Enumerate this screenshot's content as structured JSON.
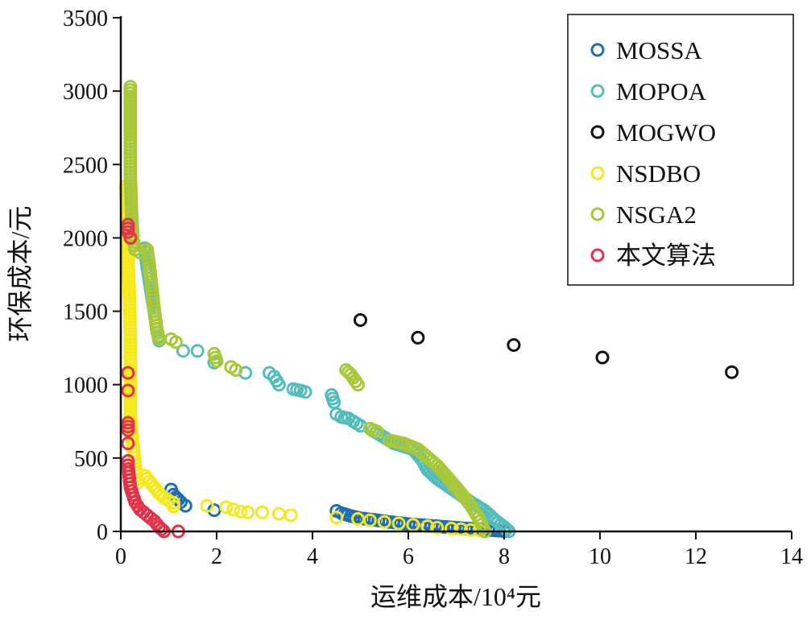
{
  "chart_data": {
    "type": "scatter",
    "title": "",
    "xlabel": "运维成本/10⁴元",
    "ylabel": "环保成本/元",
    "xlim": [
      0,
      14
    ],
    "ylim": [
      0,
      3500
    ],
    "xticks": [
      0,
      2,
      4,
      6,
      8,
      10,
      12,
      14
    ],
    "yticks": [
      0,
      500,
      1000,
      1500,
      2000,
      2500,
      3000,
      3500
    ],
    "grid": false,
    "legend_position": "top-right",
    "series": [
      {
        "name": "MOSSA",
        "color": "#1f6db3",
        "runs": [
          [
            [
              1.05,
              285
            ],
            [
              1.1,
              250
            ],
            [
              1.25,
              200
            ],
            [
              1.35,
              175
            ]
          ],
          [
            [
              1.95,
              145
            ]
          ],
          [
            [
              4.5,
              140
            ],
            [
              4.6,
              125
            ],
            [
              4.8,
              105
            ],
            [
              5.0,
              90
            ],
            [
              5.3,
              78
            ],
            [
              5.6,
              65
            ],
            [
              6.0,
              50
            ],
            [
              6.4,
              40
            ],
            [
              6.8,
              30
            ],
            [
              7.2,
              20
            ],
            [
              7.6,
              12
            ],
            [
              7.9,
              5
            ],
            [
              8.0,
              0
            ]
          ]
        ]
      },
      {
        "name": "MOPOA",
        "color": "#55bcbc",
        "runs": [
          [
            [
              0.5,
              1930
            ],
            [
              0.55,
              1800
            ],
            [
              0.6,
              1700
            ],
            [
              0.7,
              1500
            ],
            [
              0.75,
              1380
            ],
            [
              0.8,
              1300
            ]
          ],
          [
            [
              1.3,
              1230
            ]
          ],
          [
            [
              1.6,
              1230
            ]
          ],
          [
            [
              1.95,
              1150
            ]
          ],
          [
            [
              2.6,
              1080
            ]
          ],
          [
            [
              3.1,
              1080
            ],
            [
              3.2,
              1055
            ],
            [
              3.3,
              1000
            ]
          ],
          [
            [
              3.6,
              970
            ],
            [
              3.75,
              960
            ],
            [
              3.85,
              950
            ]
          ],
          [
            [
              4.4,
              930
            ],
            [
              4.45,
              880
            ]
          ],
          [
            [
              4.5,
              800
            ],
            [
              4.6,
              780
            ],
            [
              4.75,
              770
            ],
            [
              4.85,
              750
            ],
            [
              5.0,
              720
            ]
          ],
          [
            [
              5.2,
              700
            ],
            [
              5.7,
              600
            ],
            [
              6.1,
              560
            ],
            [
              6.3,
              480
            ],
            [
              6.4,
              420
            ],
            [
              6.6,
              360
            ],
            [
              7.0,
              270
            ],
            [
              7.3,
              200
            ],
            [
              7.6,
              140
            ],
            [
              7.8,
              80
            ],
            [
              8.0,
              30
            ],
            [
              8.1,
              0
            ]
          ]
        ]
      },
      {
        "name": "MOGWO",
        "color": "#111111",
        "runs": [
          [
            [
              5.0,
              1440
            ]
          ],
          [
            [
              6.2,
              1320
            ]
          ],
          [
            [
              8.2,
              1270
            ]
          ],
          [
            [
              10.05,
              1185
            ]
          ],
          [
            [
              12.75,
              1085
            ]
          ]
        ]
      },
      {
        "name": "NSDBO",
        "color": "#f5e91c",
        "runs": [
          [
            [
              0.1,
              2350
            ],
            [
              0.15,
              2100
            ],
            [
              0.15,
              1850
            ],
            [
              0.18,
              1600
            ],
            [
              0.2,
              1300
            ],
            [
              0.2,
              1000
            ],
            [
              0.2,
              800
            ],
            [
              0.25,
              600
            ],
            [
              0.3,
              450
            ],
            [
              0.35,
              330
            ]
          ],
          [
            [
              0.5,
              380
            ],
            [
              0.6,
              340
            ],
            [
              0.7,
              300
            ],
            [
              0.8,
              260
            ],
            [
              0.9,
              230
            ],
            [
              1.0,
              210
            ],
            [
              1.1,
              195
            ],
            [
              1.1,
              170
            ]
          ],
          [
            [
              1.8,
              175
            ]
          ],
          [
            [
              2.2,
              165
            ]
          ],
          [
            [
              2.35,
              150
            ]
          ],
          [
            [
              2.5,
              135
            ]
          ],
          [
            [
              2.65,
              130
            ]
          ],
          [
            [
              2.95,
              130
            ]
          ],
          [
            [
              3.3,
              120
            ]
          ],
          [
            [
              3.55,
              110
            ]
          ],
          [
            [
              4.5,
              95
            ]
          ],
          [
            [
              4.95,
              85
            ]
          ],
          [
            [
              5.2,
              75
            ]
          ],
          [
            [
              5.5,
              65
            ]
          ],
          [
            [
              5.8,
              55
            ]
          ],
          [
            [
              6.1,
              45
            ]
          ],
          [
            [
              6.4,
              35
            ]
          ],
          [
            [
              6.6,
              25
            ]
          ],
          [
            [
              6.9,
              20
            ]
          ],
          [
            [
              7.1,
              15
            ]
          ],
          [
            [
              7.3,
              10
            ]
          ],
          [
            [
              7.5,
              5
            ]
          ]
        ]
      },
      {
        "name": "NSGA2",
        "color": "#a8c83a",
        "runs": [
          [
            [
              0.2,
              3030
            ],
            [
              0.2,
              2700
            ],
            [
              0.2,
              2400
            ],
            [
              0.22,
              2200
            ],
            [
              0.25,
              2000
            ],
            [
              0.3,
              1920
            ],
            [
              0.4,
              1900
            ]
          ],
          [
            [
              0.55,
              1920
            ],
            [
              0.6,
              1800
            ],
            [
              0.65,
              1650
            ],
            [
              0.7,
              1500
            ],
            [
              0.75,
              1380
            ],
            [
              0.8,
              1310
            ]
          ],
          [
            [
              1.05,
              1310
            ],
            [
              1.15,
              1290
            ]
          ],
          [
            [
              1.95,
              1210
            ],
            [
              2.0,
              1160
            ]
          ],
          [
            [
              2.3,
              1120
            ],
            [
              2.4,
              1100
            ]
          ],
          [
            [
              4.7,
              1100
            ],
            [
              4.8,
              1070
            ],
            [
              4.95,
              1000
            ]
          ],
          [
            [
              5.2,
              700
            ],
            [
              5.35,
              680
            ]
          ],
          [
            [
              5.6,
              620
            ],
            [
              5.9,
              600
            ],
            [
              6.2,
              560
            ],
            [
              6.6,
              450
            ],
            [
              7.0,
              300
            ],
            [
              7.3,
              180
            ],
            [
              7.5,
              70
            ],
            [
              7.6,
              0
            ]
          ]
        ]
      },
      {
        "name": "本文算法",
        "color": "#e2334a",
        "runs": [
          [
            [
              0.15,
              2090
            ],
            [
              0.15,
              2040
            ],
            [
              0.2,
              2000
            ]
          ],
          [
            [
              0.15,
              1080
            ]
          ],
          [
            [
              0.15,
              960
            ]
          ],
          [
            [
              0.15,
              740
            ],
            [
              0.15,
              690
            ]
          ],
          [
            [
              0.15,
              600
            ]
          ],
          [
            [
              0.15,
              480
            ]
          ],
          [
            [
              0.15,
              450
            ],
            [
              0.2,
              300
            ],
            [
              0.3,
              200
            ],
            [
              0.4,
              150
            ],
            [
              0.55,
              110
            ],
            [
              0.7,
              70
            ],
            [
              0.8,
              30
            ],
            [
              0.9,
              0
            ]
          ],
          [
            [
              1.2,
              0
            ]
          ]
        ]
      }
    ]
  }
}
